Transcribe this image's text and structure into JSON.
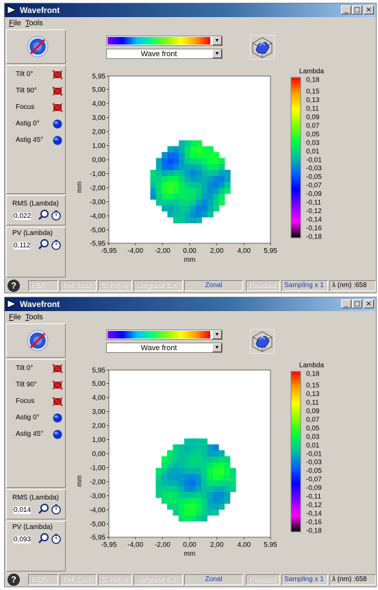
{
  "windows": [
    {
      "title": "Wavefront",
      "menu": [
        "File",
        "Tools"
      ],
      "terms": [
        {
          "label": "Tilt 0°",
          "icon": "cross-icon"
        },
        {
          "label": "Tilt 90°",
          "icon": "cross-icon"
        },
        {
          "label": "Focus",
          "icon": "cross-icon"
        },
        {
          "label": "Astig 0°",
          "icon": "blue-sphere-icon"
        },
        {
          "label": "Astig 45°",
          "icon": "blue-sphere-icon"
        }
      ],
      "rms_label": "RMS (Lambda)",
      "rms_value": "0,022",
      "pv_label": "PV (Lambda)",
      "pv_value": "0,112",
      "mode": "Wave front",
      "status": [
        "REF.",
        "Ref. Lock",
        "C. Fit(%)",
        "Neighbor Ext.",
        "Zonal",
        "Residual",
        "Sampling x 1",
        "λ (nm) :658"
      ],
      "chart_data": {
        "type": "heatmap",
        "xlabel": "mm",
        "ylabel": "mm",
        "xticks": [
          "-5,95",
          "-4,00",
          "-2,00",
          "0,00",
          "2,00",
          "4,00",
          "5,95"
        ],
        "yticks": [
          "5,95",
          "5,00",
          "4,00",
          "3,00",
          "2,00",
          "1,00",
          "0,00",
          "-1,00",
          "-2,00",
          "-3,00",
          "-4,00",
          "-5,00",
          "-5,95"
        ],
        "xlim": [
          -5.95,
          5.95
        ],
        "ylim": [
          -5.95,
          5.95
        ],
        "pupil_center": [
          0.0,
          -1.6
        ],
        "pupil_radius": 2.9,
        "colorbar_title": "Lambda",
        "colorbar_ticks": [
          "0,18",
          "0,15",
          "0,13",
          "0,11",
          "0,09",
          "0,07",
          "0,05",
          "0,03",
          "0,01",
          "-0,01",
          "-0,03",
          "-0,05",
          "-0,07",
          "-0,09",
          "-0,11",
          "-0,12",
          "-0,14",
          "-0,16",
          "-0,18"
        ],
        "colorbar_range": [
          -0.18,
          0.18
        ],
        "value_range": [
          -0.05,
          0.06
        ],
        "colors": [
          "#ff0000",
          "#ffa000",
          "#ffff00",
          "#80ff00",
          "#00ff40",
          "#00c0a0",
          "#0060ff",
          "#0000ff",
          "#8000ff",
          "#ff00ff",
          "#000000"
        ]
      }
    },
    {
      "title": "Wavefront",
      "menu": [
        "File",
        "Tools"
      ],
      "terms": [
        {
          "label": "Tilt 0°",
          "icon": "cross-icon"
        },
        {
          "label": "Tilt 90°",
          "icon": "cross-icon"
        },
        {
          "label": "Focus",
          "icon": "cross-icon"
        },
        {
          "label": "Astig 0°",
          "icon": "blue-sphere-icon"
        },
        {
          "label": "Astig 45°",
          "icon": "blue-sphere-icon"
        }
      ],
      "rms_label": "RMS (Lambda)",
      "rms_value": "0,014",
      "pv_label": "PV (Lambda)",
      "pv_value": "0,093",
      "mode": "Wave front",
      "status": [
        "REF.",
        "Ref. Lock",
        "C. Fit(%)",
        "Neighbor Ext.",
        "Zonal",
        "Residual",
        "Sampling x 1",
        "λ (nm) :658"
      ],
      "chart_data": {
        "type": "heatmap",
        "xlabel": "mm",
        "ylabel": "mm",
        "xticks": [
          "-5,95",
          "-4,00",
          "-2,00",
          "0,00",
          "2,00",
          "4,00",
          "5,95"
        ],
        "yticks": [
          "5,95",
          "5,00",
          "4,00",
          "3,00",
          "2,00",
          "1,00",
          "0,00",
          "-1,00",
          "-2,00",
          "-3,00",
          "-4,00",
          "-5,00",
          "-5,95"
        ],
        "xlim": [
          -5.95,
          5.95
        ],
        "ylim": [
          -5.95,
          5.95
        ],
        "pupil_center": [
          0.4,
          -1.9
        ],
        "pupil_radius": 2.9,
        "colorbar_title": "Lambda",
        "colorbar_ticks": [
          "0,18",
          "0,15",
          "0,13",
          "0,11",
          "0,09",
          "0,07",
          "0,05",
          "0,03",
          "0,01",
          "-0,01",
          "-0,03",
          "-0,05",
          "-0,07",
          "-0,09",
          "-0,11",
          "-0,12",
          "-0,14",
          "-0,16",
          "-0,18"
        ],
        "colorbar_range": [
          -0.18,
          0.18
        ],
        "value_range": [
          -0.04,
          0.05
        ],
        "colors": [
          "#ff0000",
          "#ffa000",
          "#ffff00",
          "#80ff00",
          "#00ff40",
          "#00c0a0",
          "#0060ff",
          "#0000ff",
          "#8000ff",
          "#ff00ff",
          "#000000"
        ]
      }
    }
  ]
}
